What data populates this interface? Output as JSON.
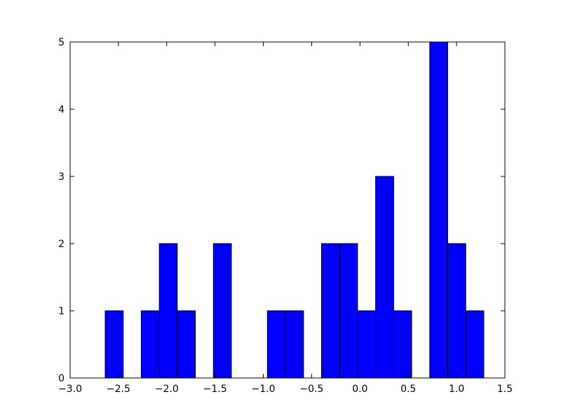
{
  "chart_data": {
    "type": "histogram",
    "bins": [
      -2.637,
      -2.45,
      -2.264,
      -2.077,
      -1.891,
      -1.704,
      -1.517,
      -1.331,
      -1.144,
      -0.958,
      -0.771,
      -0.584,
      -0.398,
      -0.211,
      -0.025,
      0.162,
      0.349,
      0.535,
      0.722,
      0.908,
      1.095,
      1.282
    ],
    "values": [
      1,
      0,
      1,
      2,
      1,
      0,
      2,
      0,
      0,
      1,
      1,
      0,
      2,
      2,
      1,
      3,
      1,
      0,
      5,
      2,
      1
    ],
    "color": "#0000ff",
    "xlim": [
      -3,
      1.5
    ],
    "xticks": [
      {
        "value": -3,
        "label": "−3.0"
      },
      {
        "value": -2.5,
        "label": "−2.5"
      },
      {
        "value": -2,
        "label": "−2.0"
      },
      {
        "value": -1.5,
        "label": "−1.5"
      },
      {
        "value": -1,
        "label": "−1.0"
      },
      {
        "value": -0.5,
        "label": "−0.5"
      },
      {
        "value": 0,
        "label": "0.0"
      },
      {
        "value": 0.5,
        "label": "0.5"
      },
      {
        "value": 1,
        "label": "1.0"
      },
      1.5
    ],
    "ylim": [
      0,
      5
    ],
    "yticks": [
      0,
      1,
      2,
      3,
      4,
      5
    ]
  }
}
